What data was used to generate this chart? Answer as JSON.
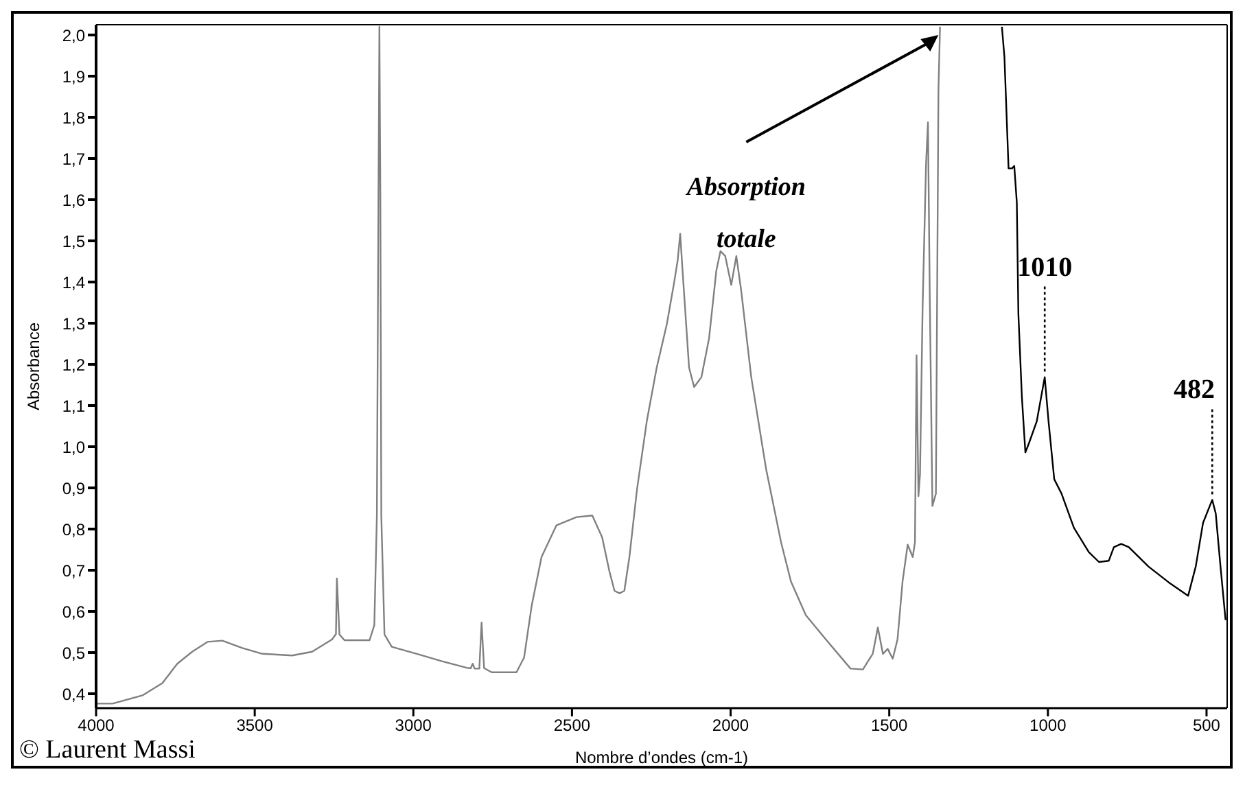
{
  "chart_data": {
    "type": "line",
    "xlabel": "Nombre d’ondes (cm-1)",
    "ylabel": "Absorbance",
    "xlim": [
      4000,
      435
    ],
    "ylim": [
      0.365,
      2.025
    ],
    "xticks": [
      4000,
      3500,
      3000,
      2500,
      2000,
      1500,
      1000,
      500
    ],
    "yticks": [
      {
        "value": 0.4,
        "label": "0,4"
      },
      {
        "value": 0.5,
        "label": "0,5"
      },
      {
        "value": 0.6,
        "label": "0,6"
      },
      {
        "value": 0.7,
        "label": "0,7"
      },
      {
        "value": 0.8,
        "label": "0,8"
      },
      {
        "value": 0.9,
        "label": "0,9"
      },
      {
        "value": 1.0,
        "label": "1,0"
      },
      {
        "value": 1.1,
        "label": "1,1"
      },
      {
        "value": 1.2,
        "label": "1,2"
      },
      {
        "value": 1.3,
        "label": "1,3"
      },
      {
        "value": 1.4,
        "label": "1,4"
      },
      {
        "value": 1.5,
        "label": "1,5"
      },
      {
        "value": 1.6,
        "label": "1,6"
      },
      {
        "value": 1.7,
        "label": "1,7"
      },
      {
        "value": 1.8,
        "label": "1,8"
      },
      {
        "value": 1.9,
        "label": "1,9"
      },
      {
        "value": 2.0,
        "label": "2,0"
      }
    ],
    "grid": false,
    "marker": "none",
    "line_style": "solid",
    "series": [
      {
        "color": "#808080",
        "x": [
          4000,
          3948,
          3854,
          3791,
          3744,
          3697,
          3649,
          3602,
          3539,
          3476,
          3382,
          3319,
          3256,
          3244,
          3241,
          3233,
          3217,
          3138,
          3123,
          3115,
          3110,
          3107,
          3104,
          3101,
          3091,
          3068,
          2989,
          2910,
          2832,
          2819,
          2813,
          2807,
          2792,
          2785,
          2777,
          2753,
          2675,
          2651,
          2627,
          2596,
          2549,
          2486,
          2436,
          2405,
          2382,
          2366,
          2350,
          2335,
          2319,
          2295,
          2264,
          2233,
          2201,
          2178,
          2167,
          2159,
          2151,
          2131,
          2115,
          2092,
          2068,
          2045,
          2032,
          2017,
          1998,
          1982,
          1967,
          1935,
          1888,
          1841,
          1810,
          1763,
          1700,
          1622,
          1583,
          1567,
          1552,
          1536,
          1520,
          1505,
          1489,
          1474,
          1458,
          1442,
          1426,
          1419,
          1414,
          1408,
          1403,
          1395,
          1384,
          1378,
          1372,
          1364,
          1353,
          1345,
          1340
        ],
        "values": [
          0.376,
          0.376,
          0.396,
          0.426,
          0.473,
          0.502,
          0.526,
          0.529,
          0.511,
          0.497,
          0.493,
          0.502,
          0.532,
          0.545,
          0.68,
          0.544,
          0.53,
          0.53,
          0.567,
          0.832,
          1.605,
          2.02,
          1.61,
          0.832,
          0.544,
          0.514,
          0.497,
          0.479,
          0.463,
          0.462,
          0.473,
          0.461,
          0.461,
          0.573,
          0.462,
          0.452,
          0.452,
          0.488,
          0.614,
          0.732,
          0.809,
          0.829,
          0.833,
          0.78,
          0.697,
          0.65,
          0.644,
          0.65,
          0.732,
          0.897,
          1.063,
          1.192,
          1.298,
          1.399,
          1.452,
          1.517,
          1.422,
          1.192,
          1.145,
          1.169,
          1.263,
          1.428,
          1.475,
          1.463,
          1.393,
          1.463,
          1.381,
          1.169,
          0.945,
          0.768,
          0.673,
          0.591,
          0.532,
          0.461,
          0.459,
          0.479,
          0.497,
          0.561,
          0.497,
          0.509,
          0.485,
          0.532,
          0.673,
          0.762,
          0.732,
          0.768,
          1.222,
          0.88,
          0.933,
          1.334,
          1.688,
          1.788,
          1.346,
          0.856,
          0.886,
          1.864,
          2.02
        ]
      },
      {
        "color": "#000000",
        "x": [
          1145,
          1137,
          1124,
          1113,
          1106,
          1098,
          1093,
          1082,
          1071,
          1059,
          1035,
          1010,
          998,
          980,
          957,
          918,
          871,
          839,
          808,
          792,
          769,
          745,
          683,
          620,
          558,
          534,
          511,
          482,
          471,
          456,
          440
        ],
        "values": [
          2.02,
          1.947,
          1.676,
          1.676,
          1.682,
          1.593,
          1.322,
          1.121,
          0.986,
          1.01,
          1.062,
          1.169,
          1.062,
          0.921,
          0.886,
          0.803,
          0.744,
          0.72,
          0.723,
          0.756,
          0.764,
          0.756,
          0.709,
          0.671,
          0.638,
          0.709,
          0.815,
          0.871,
          0.838,
          0.709,
          0.579
        ]
      }
    ],
    "annotations": [
      {
        "text": "Absorption totale",
        "x": 1345,
        "y": 2.0
      },
      {
        "text": "1010",
        "x": 1010,
        "y": 1.169
      },
      {
        "text": "482",
        "x": 482,
        "y": 0.871
      },
      "© Laurent Massi"
    ]
  }
}
